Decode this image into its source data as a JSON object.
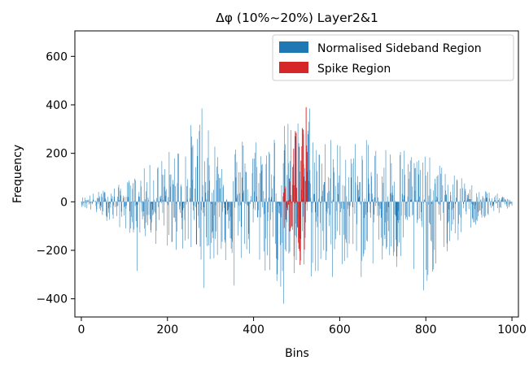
{
  "chart_data": {
    "type": "bar",
    "title": "Δφ (10%~20%) Layer2&1",
    "xlabel": "Bins",
    "ylabel": "Frequency",
    "xlim": [
      -15,
      1015
    ],
    "ylim": [
      -475,
      705
    ],
    "xticks": [
      0,
      200,
      400,
      600,
      800,
      1000
    ],
    "yticks": [
      -400,
      -200,
      0,
      200,
      400,
      600
    ],
    "xtick_labels": [
      "0",
      "200",
      "400",
      "600",
      "800",
      "1000"
    ],
    "ytick_labels": [
      "−400",
      "−200",
      "0",
      "200",
      "400",
      "600"
    ],
    "grid": false,
    "legend_position": "top-right",
    "series": [
      {
        "name": "Normalised Sideband Region",
        "color": "#1f77b4",
        "x_range": [
          0,
          1000
        ],
        "envelope_pos": [
          {
            "x": 0,
            "y": 20
          },
          {
            "x": 100,
            "y": 80
          },
          {
            "x": 200,
            "y": 210
          },
          {
            "x": 280,
            "y": 385
          },
          {
            "x": 300,
            "y": 270
          },
          {
            "x": 400,
            "y": 290
          },
          {
            "x": 460,
            "y": 320
          },
          {
            "x": 530,
            "y": 375
          },
          {
            "x": 580,
            "y": 270
          },
          {
            "x": 700,
            "y": 250
          },
          {
            "x": 760,
            "y": 240
          },
          {
            "x": 900,
            "y": 80
          },
          {
            "x": 1000,
            "y": 10
          }
        ],
        "envelope_neg": [
          {
            "x": 0,
            "y": -20
          },
          {
            "x": 100,
            "y": -120
          },
          {
            "x": 200,
            "y": -200
          },
          {
            "x": 300,
            "y": -250
          },
          {
            "x": 400,
            "y": -260
          },
          {
            "x": 455,
            "y": -350
          },
          {
            "x": 470,
            "y": -420
          },
          {
            "x": 560,
            "y": -290
          },
          {
            "x": 650,
            "y": -250
          },
          {
            "x": 790,
            "y": -360
          },
          {
            "x": 900,
            "y": -120
          },
          {
            "x": 1000,
            "y": -20
          }
        ],
        "peaks": [
          {
            "x": 130,
            "y": -285
          },
          {
            "x": 280,
            "y": 385
          },
          {
            "x": 285,
            "y": -355
          },
          {
            "x": 355,
            "y": -345
          },
          {
            "x": 470,
            "y": -420
          },
          {
            "x": 530,
            "y": 385
          },
          {
            "x": 550,
            "y": -285
          },
          {
            "x": 583,
            "y": -310
          },
          {
            "x": 650,
            "y": -310
          },
          {
            "x": 795,
            "y": -365
          }
        ]
      },
      {
        "name": "Spike Region",
        "color": "#d62728",
        "x_range": [
          470,
          525
        ],
        "envelope_pos": [
          {
            "x": 470,
            "y": 100
          },
          {
            "x": 485,
            "y": 235
          },
          {
            "x": 495,
            "y": 360
          },
          {
            "x": 505,
            "y": 380
          },
          {
            "x": 515,
            "y": 465
          },
          {
            "x": 525,
            "y": 420
          }
        ],
        "envelope_neg": [
          {
            "x": 470,
            "y": -200
          },
          {
            "x": 478,
            "y": -375
          },
          {
            "x": 490,
            "y": -340
          },
          {
            "x": 500,
            "y": -240
          },
          {
            "x": 510,
            "y": -270
          },
          {
            "x": 520,
            "y": -180
          },
          {
            "x": 525,
            "y": -30
          }
        ]
      }
    ]
  }
}
